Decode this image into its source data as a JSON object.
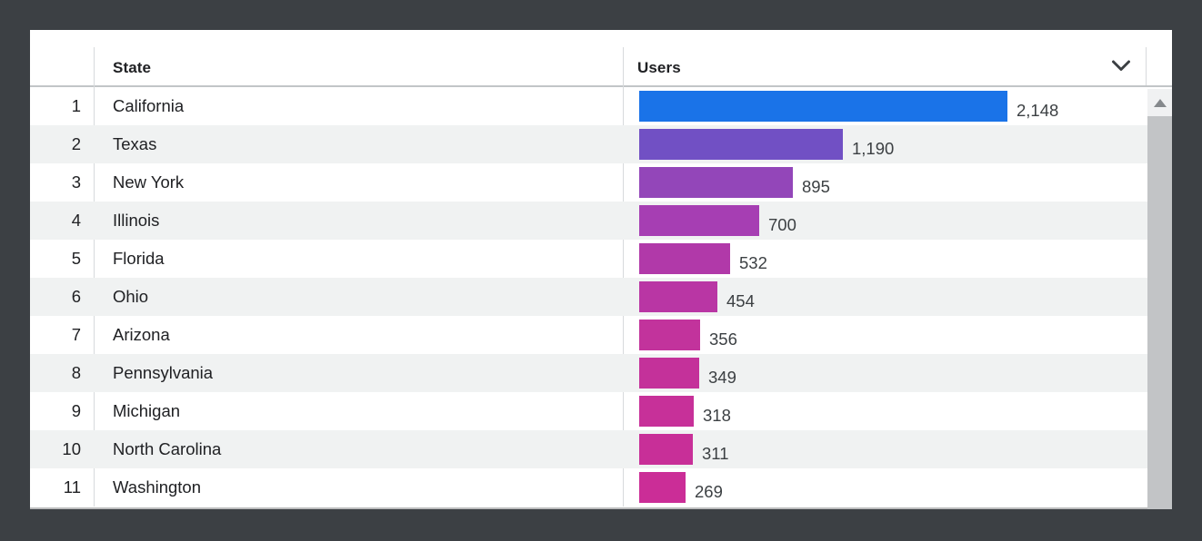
{
  "theme": {
    "frame_bg": "#3c4044",
    "card_bg": "#ffffff",
    "stripe": "#f0f2f2",
    "header_border": "#c2c5c7",
    "separator": "#d7dadc",
    "text_primary": "#202124",
    "value_text": "#3c4043",
    "icon": "#3c4043",
    "scrollbar_button_bg": "#f0f1f2",
    "scrollbar_arrow": "#85898c",
    "scrollbar_thumb": "#c2c4c6",
    "top_bar_color": "#1a73e8"
  },
  "table": {
    "columns": {
      "rank": "",
      "state": "State",
      "users": "Users"
    },
    "sort_icon": "chevron-down-icon",
    "rows": [
      {
        "rank": "1",
        "state": "California",
        "users": 2148,
        "users_label": "2,148",
        "bar_color": "#1a73e8"
      },
      {
        "rank": "2",
        "state": "Texas",
        "users": 1190,
        "users_label": "1,190",
        "bar_color": "#7150c4"
      },
      {
        "rank": "3",
        "state": "New York",
        "users": 895,
        "users_label": "895",
        "bar_color": "#9346b9"
      },
      {
        "rank": "4",
        "state": "Illinois",
        "users": 700,
        "users_label": "700",
        "bar_color": "#a63eb3"
      },
      {
        "rank": "5",
        "state": "Florida",
        "users": 532,
        "users_label": "532",
        "bar_color": "#b139a9"
      },
      {
        "rank": "6",
        "state": "Ohio",
        "users": 454,
        "users_label": "454",
        "bar_color": "#b936a4"
      },
      {
        "rank": "7",
        "state": "Arizona",
        "users": 356,
        "users_label": "356",
        "bar_color": "#c2339c"
      },
      {
        "rank": "8",
        "state": "Pennsylvania",
        "users": 349,
        "users_label": "349",
        "bar_color": "#c4319a"
      },
      {
        "rank": "9",
        "state": "Michigan",
        "users": 318,
        "users_label": "318",
        "bar_color": "#c73099"
      },
      {
        "rank": "10",
        "state": "North Carolina",
        "users": 311,
        "users_label": "311",
        "bar_color": "#c82f98"
      },
      {
        "rank": "11",
        "state": "Washington",
        "users": 269,
        "users_label": "269",
        "bar_color": "#cb2d97"
      }
    ],
    "max_users": 2148
  },
  "chart_data": {
    "type": "bar",
    "orientation": "horizontal",
    "categories": [
      "California",
      "Texas",
      "New York",
      "Illinois",
      "Florida",
      "Ohio",
      "Arizona",
      "Pennsylvania",
      "Michigan",
      "North Carolina",
      "Washington"
    ],
    "values": [
      2148,
      1190,
      895,
      700,
      532,
      454,
      356,
      349,
      318,
      311,
      269
    ],
    "value_labels": [
      "2,148",
      "1,190",
      "895",
      "700",
      "532",
      "454",
      "356",
      "349",
      "318",
      "311",
      "269"
    ],
    "title": "",
    "xlabel": "Users",
    "ylabel": "State",
    "xlim": [
      0,
      2148
    ],
    "grid": false,
    "legend": false,
    "bar_colors": [
      "#1a73e8",
      "#7150c4",
      "#9346b9",
      "#a63eb3",
      "#b139a9",
      "#b936a4",
      "#c2339c",
      "#c4319a",
      "#c73099",
      "#c82f98",
      "#cb2d97"
    ]
  },
  "scrollbar": {
    "up_arrow_icon": "triangle-up-icon",
    "thumb": "scroll-thumb"
  }
}
